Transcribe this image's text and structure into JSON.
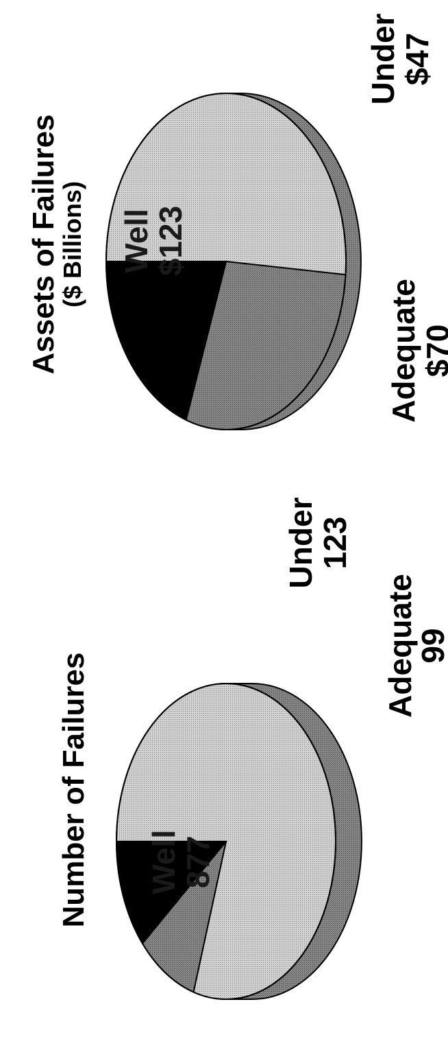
{
  "chart_data": [
    {
      "type": "pie",
      "title": "Number of Failures",
      "subtitle": "",
      "slices": [
        {
          "label": "Well",
          "value": 877,
          "value_text": "877",
          "color": "#c8c8c8"
        },
        {
          "label": "Adequate",
          "value": 99,
          "value_text": "99",
          "color": "#808080"
        },
        {
          "label": "Under",
          "value": 123,
          "value_text": "123",
          "color": "#000000"
        }
      ]
    },
    {
      "type": "pie",
      "title": "Assets of Failures",
      "subtitle": "($ Billions)",
      "slices": [
        {
          "label": "Well",
          "value": 123,
          "value_text": "$123",
          "color": "#c8c8c8"
        },
        {
          "label": "Adequate",
          "value": 70,
          "value_text": "$70",
          "color": "#808080"
        },
        {
          "label": "Under",
          "value": 47,
          "value_text": "$47",
          "color": "#000000"
        }
      ]
    }
  ]
}
